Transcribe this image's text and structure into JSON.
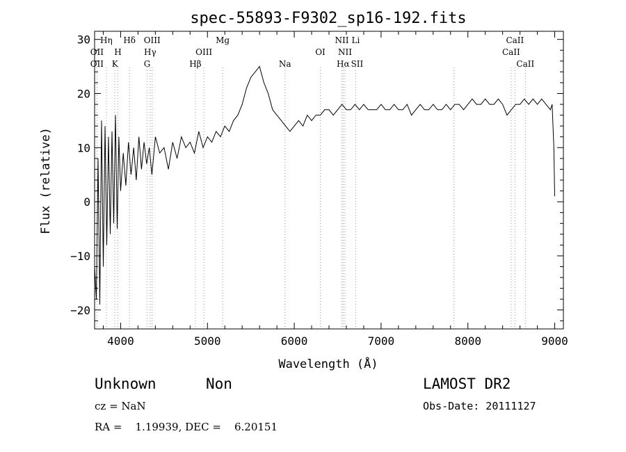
{
  "chart_data": {
    "type": "line",
    "title": "spec-55893-F9302_sp16-192.fits",
    "xlabel": "Wavelength (Å)",
    "ylabel": "Flux (relative)",
    "xlim": [
      3700,
      9100
    ],
    "ylim": [
      -23.5,
      31.5
    ],
    "x_ticks": [
      4000,
      5000,
      6000,
      7000,
      8000,
      9000
    ],
    "x_tick_labels": [
      "4000",
      "5000",
      "6000",
      "7000",
      "8000",
      "9000"
    ],
    "y_ticks": [
      -20,
      -10,
      0,
      10,
      20,
      30
    ],
    "y_tick_labels": [
      "−20",
      "−10",
      "0",
      "10",
      "20",
      "30"
    ],
    "grid": false,
    "series": [
      {
        "x": [
          3700,
          3720,
          3740,
          3760,
          3780,
          3800,
          3820,
          3840,
          3860,
          3880,
          3900,
          3920,
          3940,
          3960,
          3980,
          4000,
          4030,
          4060,
          4090,
          4120,
          4150,
          4180,
          4210,
          4240,
          4270,
          4300,
          4330,
          4360,
          4400,
          4450,
          4500,
          4550,
          4600,
          4650,
          4700,
          4750,
          4800,
          4850,
          4900,
          4950,
          5000,
          5050,
          5100,
          5150,
          5200,
          5250,
          5300,
          5350,
          5400,
          5450,
          5500,
          5550,
          5600,
          5650,
          5700,
          5750,
          5800,
          5850,
          5900,
          5950,
          6000,
          6050,
          6100,
          6150,
          6200,
          6250,
          6300,
          6350,
          6400,
          6450,
          6500,
          6550,
          6600,
          6650,
          6700,
          6750,
          6800,
          6850,
          6900,
          6950,
          7000,
          7050,
          7100,
          7150,
          7200,
          7250,
          7300,
          7350,
          7400,
          7450,
          7500,
          7550,
          7600,
          7650,
          7700,
          7750,
          7800,
          7850,
          7900,
          7950,
          8000,
          8050,
          8100,
          8150,
          8200,
          8250,
          8300,
          8350,
          8400,
          8450,
          8500,
          8550,
          8600,
          8650,
          8700,
          8750,
          8800,
          8850,
          8900,
          8950,
          8970,
          8990,
          9000
        ],
        "y": [
          -12,
          -18,
          8,
          -19,
          15,
          -12,
          14,
          -8,
          12,
          -6,
          13,
          -4,
          16,
          -5,
          12,
          2,
          9,
          3,
          11,
          5,
          10,
          4,
          12,
          6,
          11,
          7,
          10,
          5,
          12,
          9,
          10,
          6,
          11,
          8,
          12,
          10,
          11,
          9,
          13,
          10,
          12,
          11,
          13,
          12,
          14,
          13,
          15,
          16,
          18,
          21,
          23,
          24,
          25,
          22,
          20,
          17,
          16,
          15,
          14,
          13,
          14,
          15,
          14,
          16,
          15,
          16,
          16,
          17,
          17,
          16,
          17,
          18,
          17,
          17,
          18,
          17,
          18,
          17,
          17,
          17,
          18,
          17,
          17,
          18,
          17,
          17,
          18,
          16,
          17,
          18,
          17,
          17,
          18,
          17,
          17,
          18,
          17,
          18,
          18,
          17,
          18,
          19,
          18,
          18,
          19,
          18,
          18,
          19,
          18,
          16,
          17,
          18,
          18,
          19,
          18,
          19,
          18,
          19,
          18,
          17,
          18,
          10,
          1
        ]
      }
    ],
    "line_labels": [
      {
        "name": "OII",
        "x": 3727,
        "row": 2
      },
      {
        "name": "OII",
        "x": 3727,
        "row": 3
      },
      {
        "name": "Hη",
        "x": 3835,
        "row": 1
      },
      {
        "name": "H",
        "x": 3968,
        "row": 2
      },
      {
        "name": "K",
        "x": 3934,
        "row": 3
      },
      {
        "name": "Hδ",
        "x": 4102,
        "row": 1
      },
      {
        "name": "OIII",
        "x": 4363,
        "row": 1
      },
      {
        "name": "Hγ",
        "x": 4340,
        "row": 2
      },
      {
        "name": "G",
        "x": 4305,
        "row": 3
      },
      {
        "name": "Hβ",
        "x": 4861,
        "row": 3
      },
      {
        "name": "OIII",
        "x": 4959,
        "row": 2
      },
      {
        "name": "Mg",
        "x": 5175,
        "row": 1
      },
      {
        "name": "Na",
        "x": 5893,
        "row": 3
      },
      {
        "name": "OI",
        "x": 6300,
        "row": 2
      },
      {
        "name": "NII",
        "x": 6548,
        "row": 1
      },
      {
        "name": "Li",
        "x": 6708,
        "row": 1
      },
      {
        "name": "NII",
        "x": 6584,
        "row": 2
      },
      {
        "name": "Hα",
        "x": 6563,
        "row": 3
      },
      {
        "name": "SII",
        "x": 6724,
        "row": 3
      },
      {
        "name": "CaII",
        "x": 8542,
        "row": 1
      },
      {
        "name": "CaII",
        "x": 8498,
        "row": 2
      },
      {
        "name": "CaII",
        "x": 8662,
        "row": 3
      }
    ],
    "line_markers": [
      3727,
      3835,
      3934,
      3968,
      4102,
      4305,
      4340,
      4363,
      4861,
      4959,
      5175,
      5893,
      6300,
      6548,
      6563,
      6584,
      6708,
      7840,
      8498,
      8542,
      8662
    ]
  },
  "info": {
    "object_class": "Unknown",
    "subclass": "Non",
    "survey": "LAMOST DR2",
    "cz": "cz = NaN",
    "obs_date": "Obs-Date: 20111127",
    "coords": "RA =    1.19939, DEC =    6.20151"
  }
}
